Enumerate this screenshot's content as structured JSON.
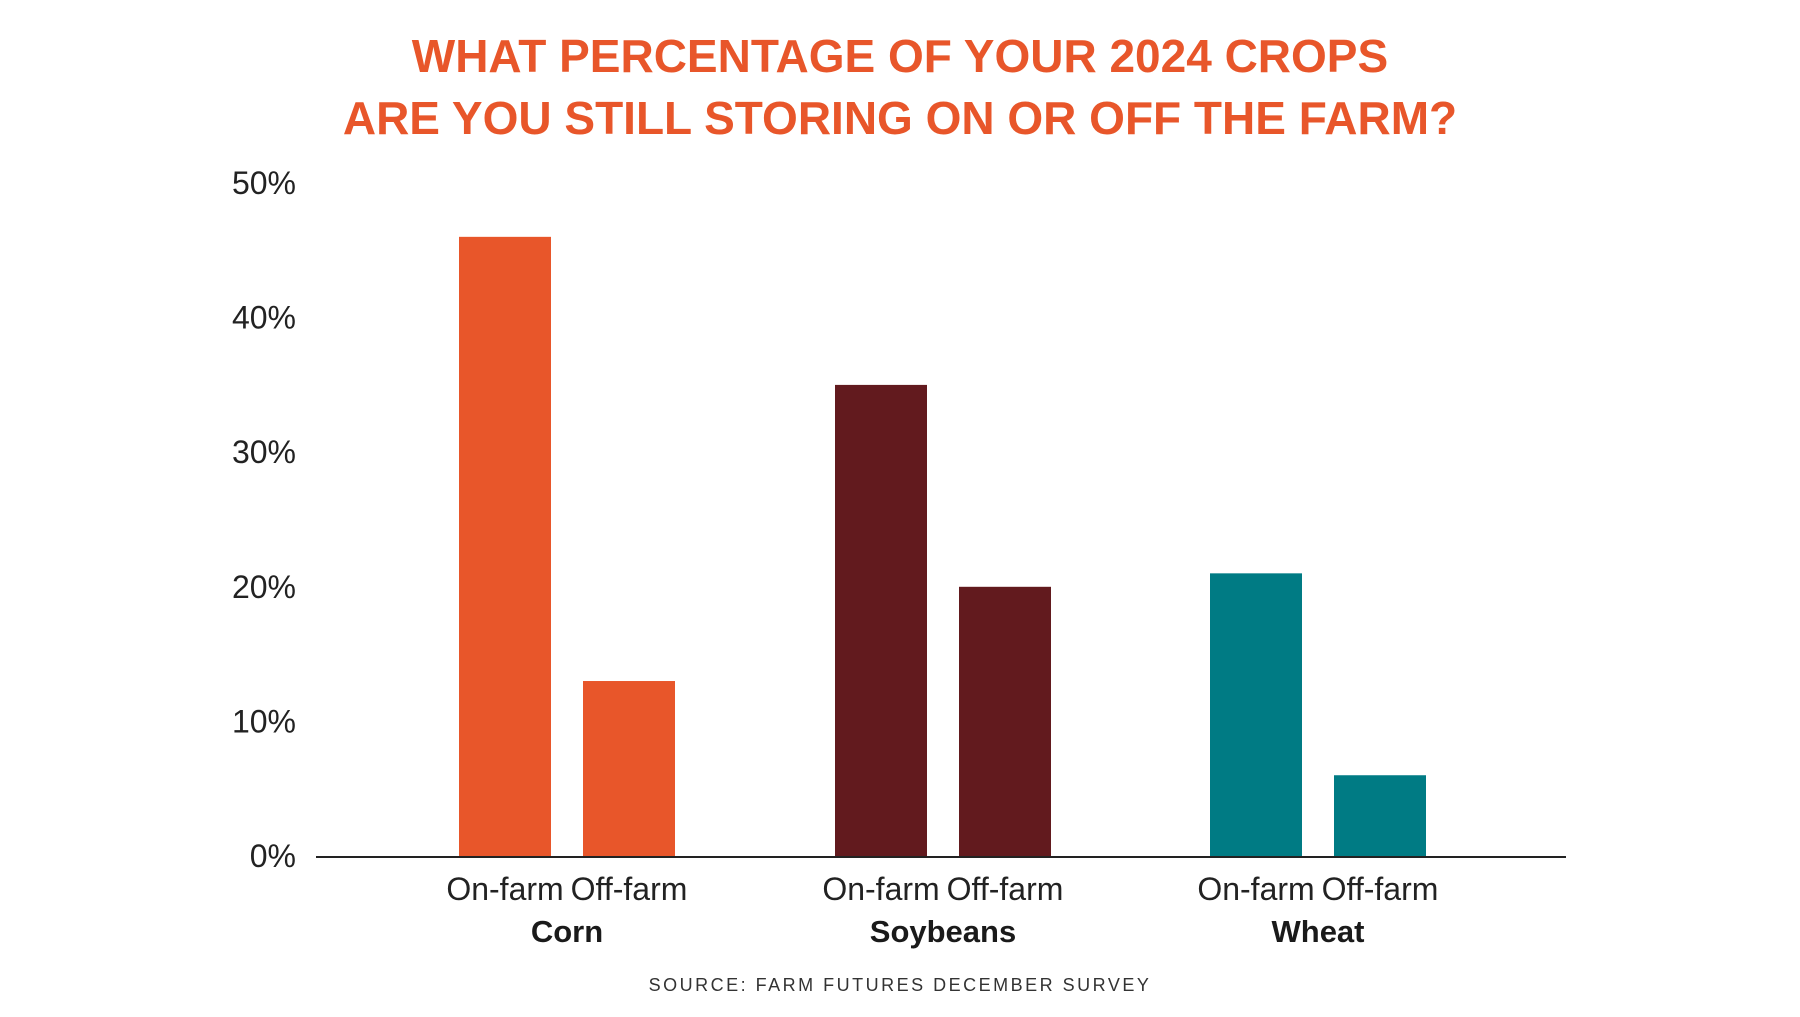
{
  "title_lines": [
    "WHAT PERCENTAGE OF YOUR 2024 CROPS",
    "ARE YOU STILL STORING ON OR OFF THE FARM?"
  ],
  "source": "SOURCE: FARM FUTURES DECEMBER SURVEY",
  "colors": {
    "title": "#e8562a",
    "Corn": "#e8562a",
    "Soybeans": "#621a1e",
    "Wheat": "#007b84",
    "axis": "#222222"
  },
  "chart_data": {
    "type": "bar",
    "categories": [
      "Corn",
      "Soybeans",
      "Wheat"
    ],
    "subcategories": [
      "On-farm",
      "Off-farm"
    ],
    "series": [
      {
        "name": "On-farm",
        "values": [
          46,
          35,
          21
        ]
      },
      {
        "name": "Off-farm",
        "values": [
          13,
          20,
          6
        ]
      }
    ],
    "ylim": [
      0,
      50
    ],
    "yticks": [
      0,
      10,
      20,
      30,
      40,
      50
    ],
    "ytick_labels": [
      "0%",
      "10%",
      "20%",
      "30%",
      "40%",
      "50%"
    ],
    "grid": false,
    "legend": "none"
  }
}
